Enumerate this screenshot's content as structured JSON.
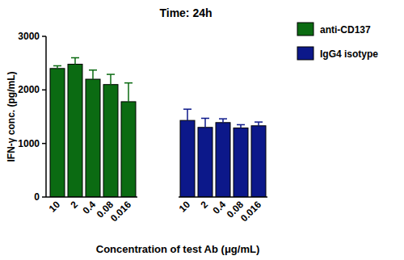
{
  "chart_data": {
    "type": "bar",
    "title": "Time: 24h",
    "x_label": "Concentration of test Ab (μg/mL)",
    "y_label": "IFN-γ conc. (pg/mL)",
    "categories": [
      "10",
      "2",
      "0.4",
      "0.08",
      "0.016"
    ],
    "series": [
      {
        "name": "anti-CD137",
        "color": "#0b6b12",
        "values": [
          2400,
          2480,
          2200,
          2100,
          1780
        ],
        "errors": [
          50,
          120,
          170,
          190,
          350
        ]
      },
      {
        "name": "IgG4 isotype",
        "color": "#0c188a",
        "values": [
          1430,
          1300,
          1390,
          1290,
          1330
        ],
        "errors": [
          210,
          170,
          70,
          60,
          70
        ]
      }
    ],
    "ylim": [
      0,
      3000
    ],
    "yticks": [
      0,
      1000,
      2000,
      3000
    ],
    "legend": "right",
    "grid": false
  }
}
